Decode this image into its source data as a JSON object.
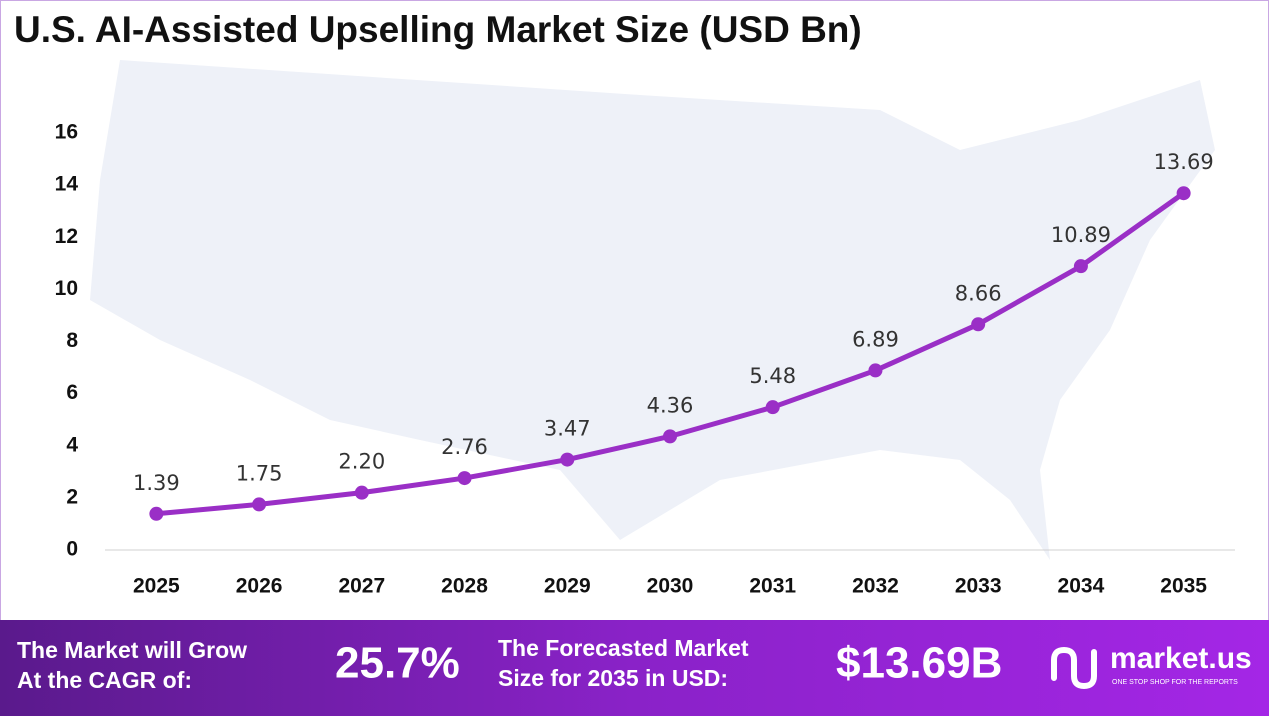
{
  "chart_data": {
    "type": "line",
    "title": "U.S. AI-Assisted Upselling Market Size (USD Bn)",
    "categories": [
      "2025",
      "2026",
      "2027",
      "2028",
      "2029",
      "2030",
      "2031",
      "2032",
      "2033",
      "2034",
      "2035"
    ],
    "values": [
      1.39,
      1.75,
      2.2,
      2.76,
      3.47,
      4.36,
      5.48,
      6.89,
      8.66,
      10.89,
      13.69
    ],
    "value_labels": [
      "1.39",
      "1.75",
      "2.20",
      "2.76",
      "3.47",
      "4.36",
      "5.48",
      "6.89",
      "8.66",
      "10.89",
      "13.69"
    ],
    "color": "#9a2fc6",
    "ylim": [
      0,
      16
    ],
    "yticks": [
      0,
      2,
      4,
      6,
      8,
      10,
      12,
      14,
      16
    ],
    "grid": false
  },
  "footer": {
    "cagr_label": [
      "The Market will Grow",
      "At the CAGR of:"
    ],
    "cagr_value": "25.7%",
    "forecast_label": [
      "The Forecasted Market",
      "Size for 2035 in USD:"
    ],
    "forecast_value": "$13.69B",
    "brand": "market.us",
    "tagline": "ONE STOP SHOP FOR THE REPORTS"
  }
}
